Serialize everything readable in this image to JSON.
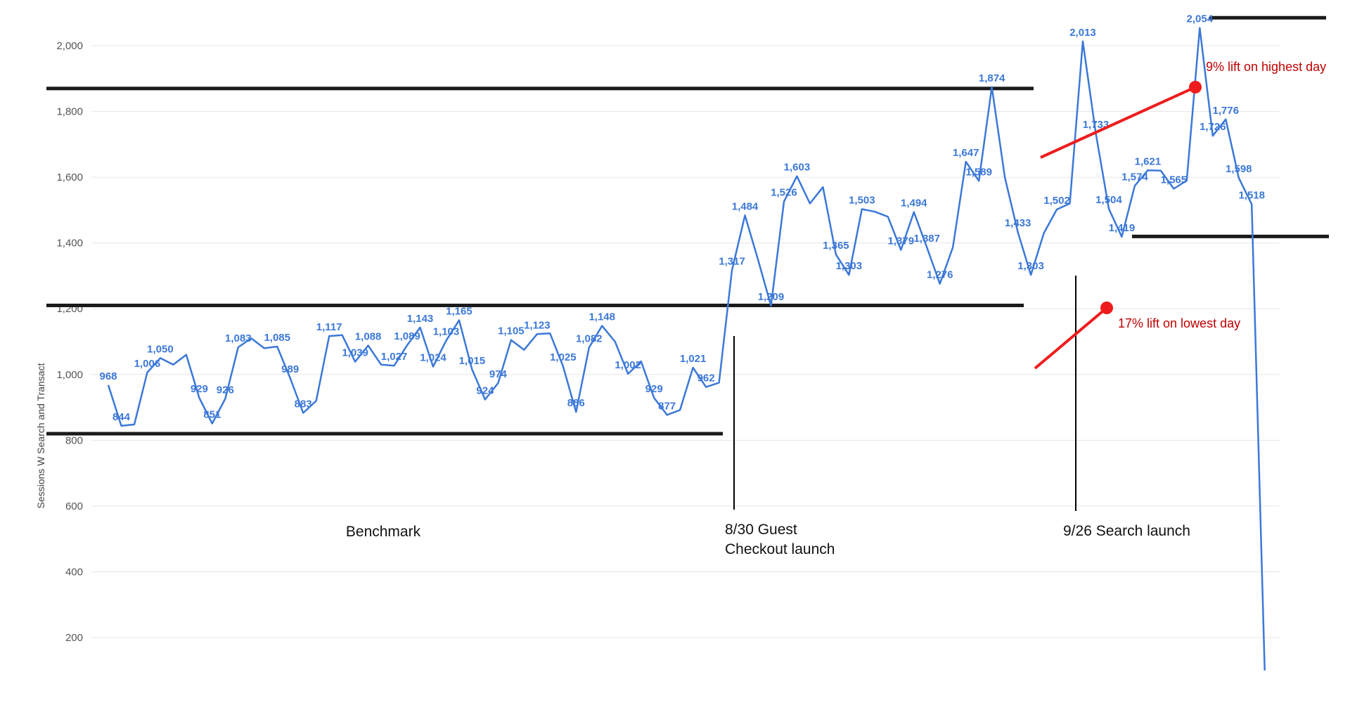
{
  "chart_data": {
    "type": "line",
    "ylabel": "Sessions W Search and Transact",
    "ylim": [
      100,
      2150
    ],
    "yticks": [
      200,
      400,
      600,
      800,
      1000,
      1200,
      1400,
      1600,
      1800,
      2000
    ],
    "ytick_labels": [
      "200",
      "400",
      "600",
      "800",
      "1,000",
      "1,200",
      "1,400",
      "1,600",
      "1,800",
      "2,000"
    ],
    "grid": true,
    "line_color": "#3b78d8",
    "series": [
      {
        "values": [
          968,
          844,
          848,
          1006,
          1050,
          1030,
          1060,
          929,
          851,
          926,
          1083,
          1110,
          1080,
          1085,
          989,
          883,
          920,
          1117,
          1120,
          1039,
          1088,
          1030,
          1027,
          1089,
          1143,
          1024,
          1103,
          1165,
          1015,
          924,
          974,
          1105,
          1075,
          1123,
          1125,
          1025,
          886,
          1082,
          1148,
          1100,
          1002,
          1040,
          929,
          877,
          892,
          1021,
          962,
          975,
          1317,
          1484,
          1350,
          1209,
          1526,
          1603,
          1520,
          1570,
          1365,
          1303,
          1503,
          1495,
          1480,
          1379,
          1494,
          1387,
          1276,
          1387,
          1647,
          1589,
          1874,
          1600,
          1433,
          1303,
          1430,
          1502,
          1520,
          2013,
          1733,
          1504,
          1419,
          1574,
          1621,
          1620,
          1565,
          1590,
          2054,
          1726,
          1776,
          1598,
          1518,
          100
        ],
        "labels": [
          "968",
          "844",
          "",
          "1,006",
          "1,050",
          "",
          "",
          "929",
          "851",
          "926",
          "1,083",
          "",
          "",
          "1,085",
          "989",
          "883",
          "",
          "1,117",
          "",
          "1,039",
          "1,088",
          "",
          "1,027",
          "1,089",
          "1,143",
          "1,024",
          "1,103",
          "1,165",
          "1,015",
          "924",
          "974",
          "1,105",
          "",
          "1,123",
          "",
          "1,025",
          "886",
          "1,082",
          "1,148",
          "",
          "1,002",
          "",
          "929",
          "877",
          "",
          "1,021",
          "962",
          "",
          "1,317",
          "1,484",
          "",
          "1,209",
          "1,526",
          "1,603",
          "",
          "",
          "1,365",
          "1,303",
          "1,503",
          "",
          "",
          "1,379",
          "1,494",
          "1,387",
          "1,276",
          "",
          "1,647",
          "1,589",
          "1,874",
          "",
          "1,433",
          "1,303",
          "",
          "1,502",
          "",
          "2,013",
          "1,733",
          "1,504",
          "1,419",
          "1,574",
          "1,621",
          "",
          "1,565",
          "",
          "2,054",
          "1,726",
          "1,776",
          "1,598",
          "1,518",
          ""
        ]
      }
    ],
    "annotations": {
      "benchmark": "Benchmark",
      "guest_checkout_line1": "8/30 Guest",
      "guest_checkout_line2": "Checkout launch",
      "search_launch": "9/26 Search launch",
      "lift_highest": "9% lift on highest day",
      "lift_lowest": "17% lift on lowest day"
    },
    "reference_levels": [
      820,
      1870,
      1210,
      2085,
      1420
    ],
    "colors": {
      "reference": "#1a1a1a",
      "lift": "#ee1c1c",
      "grid": "#e6e6e6"
    }
  }
}
